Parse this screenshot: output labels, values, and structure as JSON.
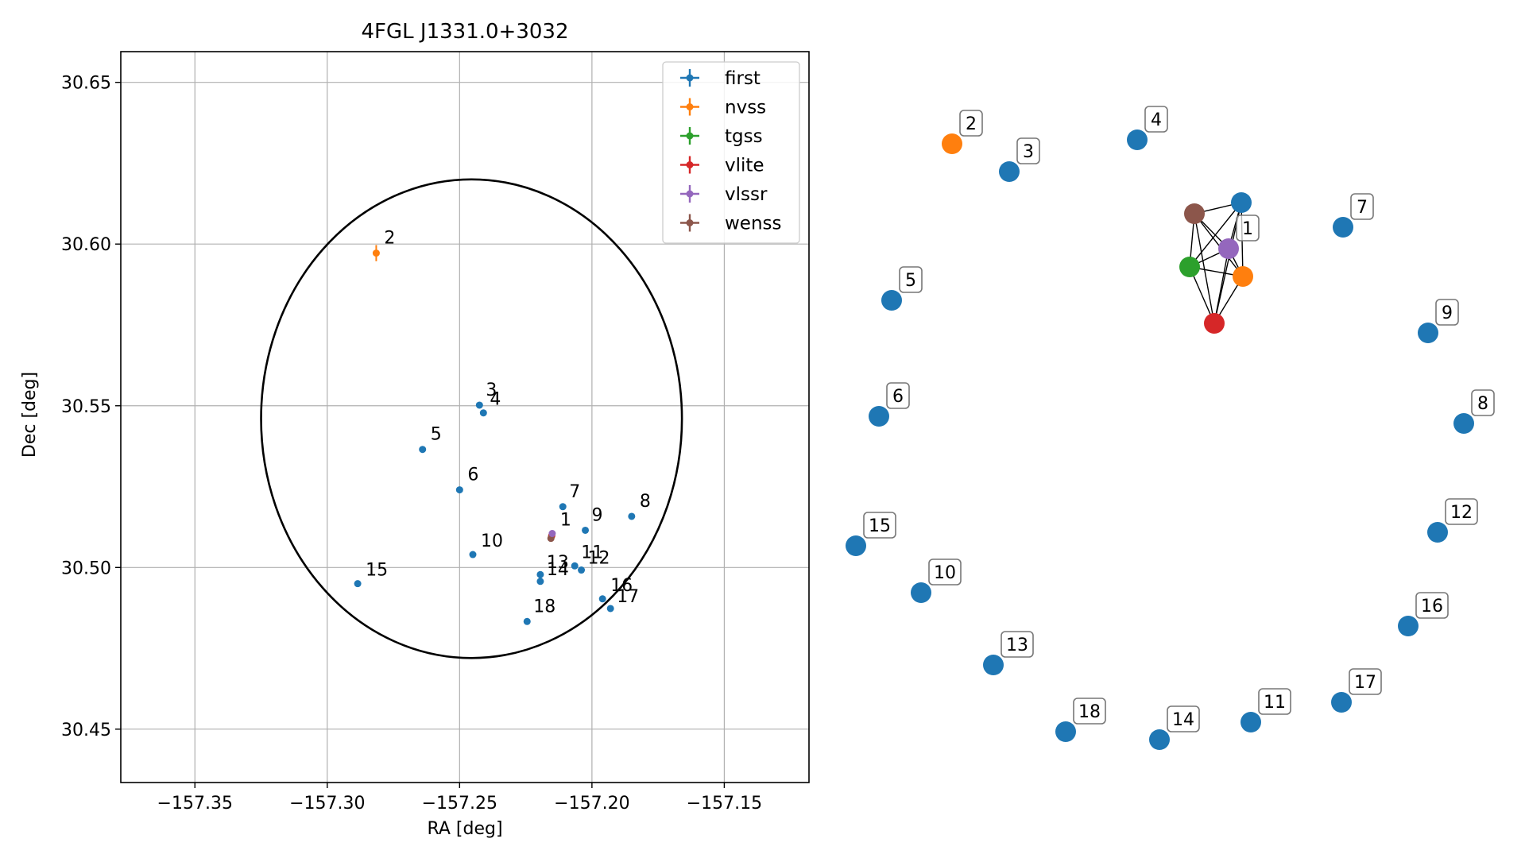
{
  "chart_data": [
    {
      "type": "scatter",
      "title": "4FGL J1331.0+3032",
      "xlabel": "RA [deg]",
      "ylabel": "Dec [deg]",
      "xlim": [
        -157.378,
        -157.118
      ],
      "ylim": [
        30.4335,
        30.6595
      ],
      "xticks": [
        -157.35,
        -157.3,
        -157.25,
        -157.2,
        -157.15
      ],
      "xtick_labels": [
        "−157.35",
        "−157.30",
        "−157.25",
        "−157.20",
        "−157.15"
      ],
      "yticks": [
        30.45,
        30.5,
        30.55,
        30.6,
        30.65
      ],
      "ytick_labels": [
        "30.45",
        "30.50",
        "30.55",
        "30.60",
        "30.65"
      ],
      "grid": true,
      "legend_position": "top-right",
      "ellipse": {
        "center_ra": -157.2455,
        "center_dec": 30.546,
        "semi_ra": 0.0795,
        "semi_dec": 0.074,
        "color": "#000000"
      },
      "series": [
        {
          "name": "first",
          "color": "#1f77b4",
          "points": [
            {
              "label": "3",
              "ra": -157.2425,
              "dec": 30.5502
            },
            {
              "label": "4",
              "ra": -157.241,
              "dec": 30.5478
            },
            {
              "label": "5",
              "ra": -157.264,
              "dec": 30.5365
            },
            {
              "label": "6",
              "ra": -157.25,
              "dec": 30.524
            },
            {
              "label": "7",
              "ra": -157.211,
              "dec": 30.5188
            },
            {
              "label": "8",
              "ra": -157.185,
              "dec": 30.5158
            },
            {
              "label": "9",
              "ra": -157.2025,
              "dec": 30.5115
            },
            {
              "label": "10",
              "ra": -157.245,
              "dec": 30.504
            },
            {
              "label": "11",
              "ra": -157.2065,
              "dec": 30.5005
            },
            {
              "label": "12",
              "ra": -157.204,
              "dec": 30.4992
            },
            {
              "label": "13",
              "ra": -157.2195,
              "dec": 30.4978
            },
            {
              "label": "14",
              "ra": -157.2195,
              "dec": 30.4957
            },
            {
              "label": "15",
              "ra": -157.2885,
              "dec": 30.495
            },
            {
              "label": "16",
              "ra": -157.196,
              "dec": 30.4903
            },
            {
              "label": "17",
              "ra": -157.193,
              "dec": 30.4873
            },
            {
              "label": "18",
              "ra": -157.2245,
              "dec": 30.4833
            }
          ]
        },
        {
          "name": "nvss",
          "color": "#ff7f0e",
          "points": [
            {
              "label": "2",
              "ra": -157.2815,
              "dec": 30.5972,
              "dec_err": 0.0025
            },
            {
              "label": "",
              "ra": -157.2152,
              "dec": 30.5098
            }
          ]
        },
        {
          "name": "tgss",
          "color": "#2ca02c",
          "points": [
            {
              "label": "",
              "ra": -157.2152,
              "dec": 30.5098
            }
          ]
        },
        {
          "name": "vlite",
          "color": "#d62728",
          "points": [
            {
              "label": "",
              "ra": -157.2152,
              "dec": 30.5098
            }
          ]
        },
        {
          "name": "vlssr",
          "color": "#9467bd",
          "points": [
            {
              "label": "1",
              "ra": -157.215,
              "dec": 30.5105
            }
          ]
        },
        {
          "name": "wenss",
          "color": "#8c564b",
          "points": [
            {
              "label": "",
              "ra": -157.2155,
              "dec": 30.509
            }
          ]
        }
      ]
    },
    {
      "type": "network",
      "nodes": [
        {
          "id": "1",
          "label": "1",
          "color": "#9467bd"
        },
        {
          "id": "2",
          "label": "2",
          "color": "#ff7f0e"
        },
        {
          "id": "3",
          "label": "3",
          "color": "#1f77b4"
        },
        {
          "id": "4",
          "label": "4",
          "color": "#1f77b4"
        },
        {
          "id": "5",
          "label": "5",
          "color": "#1f77b4"
        },
        {
          "id": "6",
          "label": "6",
          "color": "#1f77b4"
        },
        {
          "id": "7",
          "label": "7",
          "color": "#1f77b4"
        },
        {
          "id": "8",
          "label": "8",
          "color": "#1f77b4"
        },
        {
          "id": "9",
          "label": "9",
          "color": "#1f77b4"
        },
        {
          "id": "10",
          "label": "10",
          "color": "#1f77b4"
        },
        {
          "id": "11",
          "label": "11",
          "color": "#1f77b4"
        },
        {
          "id": "12",
          "label": "12",
          "color": "#1f77b4"
        },
        {
          "id": "13",
          "label": "13",
          "color": "#1f77b4"
        },
        {
          "id": "14",
          "label": "14",
          "color": "#1f77b4"
        },
        {
          "id": "15",
          "label": "15",
          "color": "#1f77b4"
        },
        {
          "id": "16",
          "label": "16",
          "color": "#1f77b4"
        },
        {
          "id": "17",
          "label": "17",
          "color": "#1f77b4"
        },
        {
          "id": "18",
          "label": "18",
          "color": "#1f77b4"
        },
        {
          "id": "a",
          "label": "",
          "color": "#1f77b4"
        },
        {
          "id": "b",
          "label": "",
          "color": "#8c564b"
        },
        {
          "id": "c",
          "label": "",
          "color": "#2ca02c"
        },
        {
          "id": "d",
          "label": "",
          "color": "#ff7f0e"
        },
        {
          "id": "e",
          "label": "",
          "color": "#d62728"
        }
      ],
      "edges": [
        [
          "a",
          "b"
        ],
        [
          "a",
          "1"
        ],
        [
          "a",
          "c"
        ],
        [
          "a",
          "d"
        ],
        [
          "a",
          "e"
        ],
        [
          "b",
          "1"
        ],
        [
          "b",
          "c"
        ],
        [
          "b",
          "d"
        ],
        [
          "b",
          "e"
        ],
        [
          "1",
          "c"
        ],
        [
          "1",
          "d"
        ],
        [
          "1",
          "e"
        ],
        [
          "c",
          "d"
        ],
        [
          "c",
          "e"
        ],
        [
          "d",
          "e"
        ]
      ]
    }
  ]
}
